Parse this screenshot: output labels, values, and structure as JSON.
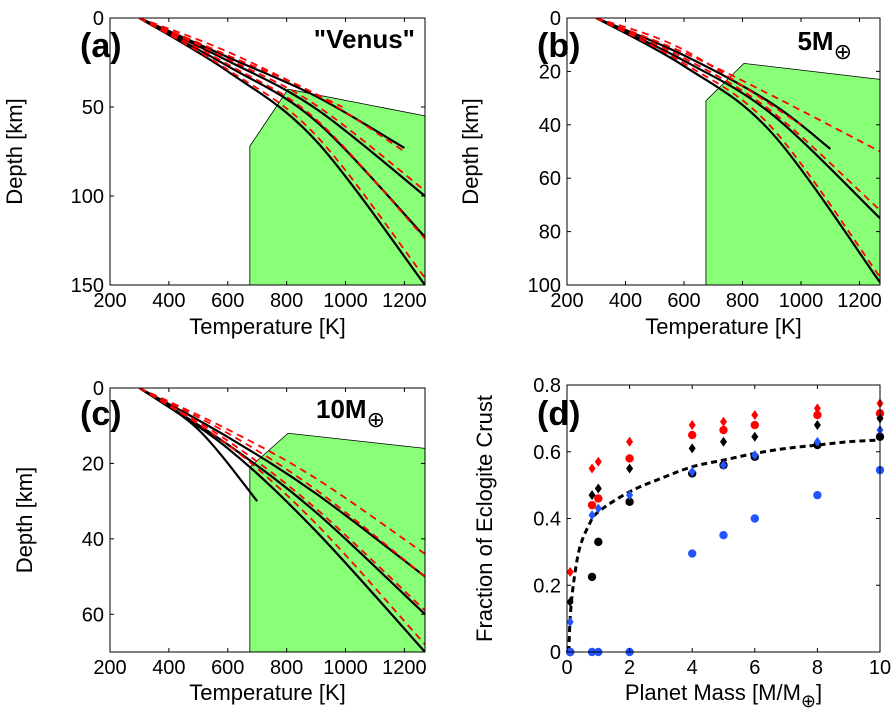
{
  "chart_data": [
    {
      "type": "line",
      "panel_label": "(a)",
      "title": "\"Venus\"",
      "xlabel": "Temperature [K]",
      "ylabel": "Depth [km]",
      "xlim": [
        200,
        1270
      ],
      "ylim": [
        0,
        150
      ],
      "y_reversed": true,
      "xticks": [
        200,
        400,
        600,
        800,
        1000,
        1200
      ],
      "yticks": [
        0,
        50,
        100,
        150
      ],
      "green_region": [
        [
          675,
          150
        ],
        [
          675,
          72
        ],
        [
          805,
          40
        ],
        [
          1270,
          55
        ],
        [
          1270,
          150
        ]
      ],
      "series": [
        {
          "name": "black solid 1",
          "color": "#000000",
          "dash": "solid",
          "points": [
            [
              300,
              0
            ],
            [
              600,
              22
            ],
            [
              900,
              44
            ],
            [
              1200,
              73
            ]
          ]
        },
        {
          "name": "black solid 2",
          "color": "#000000",
          "dash": "solid",
          "points": [
            [
              300,
              0
            ],
            [
              600,
              24
            ],
            [
              900,
              51
            ],
            [
              1270,
              100
            ]
          ]
        },
        {
          "name": "black solid 3",
          "color": "#000000",
          "dash": "solid",
          "points": [
            [
              300,
              0
            ],
            [
              600,
              27
            ],
            [
              900,
              58
            ],
            [
              1270,
              123
            ]
          ]
        },
        {
          "name": "black solid 4",
          "color": "#000000",
          "dash": "solid",
          "points": [
            [
              300,
              0
            ],
            [
              600,
              30
            ],
            [
              900,
              69
            ],
            [
              1270,
              150
            ]
          ]
        },
        {
          "name": "red dashed 1",
          "color": "#ff0000",
          "dash": "dashed",
          "points": [
            [
              300,
              0
            ],
            [
              600,
              19
            ],
            [
              990,
              50
            ]
          ]
        },
        {
          "name": "red dashed 2",
          "color": "#ff0000",
          "dash": "dashed",
          "points": [
            [
              300,
              0
            ],
            [
              600,
              21
            ],
            [
              900,
              43
            ],
            [
              1200,
              75
            ]
          ]
        },
        {
          "name": "red dashed 3",
          "color": "#ff0000",
          "dash": "dashed",
          "points": [
            [
              300,
              0
            ],
            [
              600,
              23
            ],
            [
              900,
              49
            ],
            [
              1270,
              97
            ]
          ]
        },
        {
          "name": "red dashed 4",
          "color": "#ff0000",
          "dash": "dashed",
          "points": [
            [
              300,
              0
            ],
            [
              600,
              26
            ],
            [
              900,
              57
            ],
            [
              1270,
              124
            ]
          ]
        },
        {
          "name": "red dashed 5",
          "color": "#ff0000",
          "dash": "dashed",
          "points": [
            [
              300,
              0
            ],
            [
              600,
              29
            ],
            [
              900,
              66
            ],
            [
              1270,
              146
            ]
          ]
        }
      ]
    },
    {
      "type": "line",
      "panel_label": "(b)",
      "title": "5M",
      "title_symbol": "⊕",
      "xlabel": "Temperature [K]",
      "ylabel": "Depth [km]",
      "xlim": [
        200,
        1270
      ],
      "ylim": [
        0,
        100
      ],
      "y_reversed": true,
      "xticks": [
        200,
        400,
        600,
        800,
        1000,
        1200
      ],
      "yticks": [
        0,
        20,
        40,
        60,
        80,
        100
      ],
      "green_region": [
        [
          675,
          100
        ],
        [
          675,
          31
        ],
        [
          805,
          17
        ],
        [
          1270,
          23
        ],
        [
          1270,
          100
        ]
      ],
      "series": [
        {
          "name": "black solid 1",
          "color": "#000000",
          "dash": "solid",
          "points": [
            [
              300,
              0
            ],
            [
              600,
              14
            ],
            [
              900,
              32
            ],
            [
              1100,
              49
            ]
          ]
        },
        {
          "name": "black solid 2",
          "color": "#000000",
          "dash": "solid",
          "points": [
            [
              300,
              0
            ],
            [
              600,
              16
            ],
            [
              900,
              36
            ],
            [
              1270,
              75
            ]
          ]
        },
        {
          "name": "black solid 3",
          "color": "#000000",
          "dash": "solid",
          "points": [
            [
              300,
              0
            ],
            [
              600,
              18
            ],
            [
              900,
              43
            ],
            [
              1270,
              99
            ]
          ]
        },
        {
          "name": "red dashed 1",
          "color": "#ff0000",
          "dash": "dashed",
          "points": [
            [
              300,
              0
            ],
            [
              600,
              12
            ],
            [
              1000,
              40
            ]
          ]
        },
        {
          "name": "red dashed 2",
          "color": "#ff0000",
          "dash": "dashed",
          "points": [
            [
              300,
              0
            ],
            [
              600,
              13
            ],
            [
              900,
              29
            ],
            [
              1270,
              50
            ]
          ]
        },
        {
          "name": "red dashed 3",
          "color": "#ff0000",
          "dash": "dashed",
          "points": [
            [
              300,
              0
            ],
            [
              600,
              15
            ],
            [
              900,
              35
            ],
            [
              1270,
              72
            ]
          ]
        },
        {
          "name": "red dashed 4",
          "color": "#ff0000",
          "dash": "dashed",
          "points": [
            [
              300,
              0
            ],
            [
              600,
              17
            ],
            [
              900,
              41
            ],
            [
              1270,
              97
            ]
          ]
        }
      ]
    },
    {
      "type": "line",
      "panel_label": "(c)",
      "title": "10M",
      "title_symbol": "⊕",
      "xlabel": "Temperature [K]",
      "ylabel": "Depth [km]",
      "xlim": [
        200,
        1270
      ],
      "ylim": [
        0,
        70
      ],
      "y_reversed": true,
      "xticks": [
        200,
        400,
        600,
        800,
        1000,
        1200
      ],
      "yticks": [
        0,
        20,
        40,
        60
      ],
      "green_region": [
        [
          675,
          70
        ],
        [
          675,
          21
        ],
        [
          805,
          12
        ],
        [
          1270,
          16
        ],
        [
          1270,
          70
        ]
      ],
      "series": [
        {
          "name": "black solid 1",
          "color": "#000000",
          "dash": "solid",
          "points": [
            [
              300,
              0
            ],
            [
              500,
              11
            ],
            [
              700,
              30
            ]
          ]
        },
        {
          "name": "black solid 2",
          "color": "#000000",
          "dash": "solid",
          "points": [
            [
              300,
              0
            ],
            [
              600,
              13
            ],
            [
              900,
              28
            ],
            [
              1270,
              50
            ]
          ]
        },
        {
          "name": "black solid 3",
          "color": "#000000",
          "dash": "solid",
          "points": [
            [
              300,
              0
            ],
            [
              600,
              15
            ],
            [
              900,
              33
            ],
            [
              1270,
              60
            ]
          ]
        },
        {
          "name": "black solid 4",
          "color": "#000000",
          "dash": "solid",
          "points": [
            [
              300,
              0
            ],
            [
              600,
              16
            ],
            [
              900,
              38
            ],
            [
              1270,
              70
            ]
          ]
        },
        {
          "name": "red dashed 1",
          "color": "#ff0000",
          "dash": "dashed",
          "points": [
            [
              300,
              0
            ],
            [
              600,
              11
            ],
            [
              900,
              24
            ],
            [
              1270,
              44
            ]
          ]
        },
        {
          "name": "red dashed 2",
          "color": "#ff0000",
          "dash": "dashed",
          "points": [
            [
              300,
              0
            ],
            [
              600,
              12
            ],
            [
              900,
              27
            ],
            [
              1270,
              50
            ]
          ]
        },
        {
          "name": "red dashed 3",
          "color": "#ff0000",
          "dash": "dashed",
          "points": [
            [
              300,
              0
            ],
            [
              600,
              14
            ],
            [
              900,
              32
            ],
            [
              1270,
              59
            ]
          ]
        },
        {
          "name": "red dashed 4",
          "color": "#ff0000",
          "dash": "dashed",
          "points": [
            [
              300,
              0
            ],
            [
              600,
              15
            ],
            [
              900,
              36
            ],
            [
              1270,
              68
            ]
          ]
        }
      ]
    },
    {
      "type": "scatter",
      "panel_label": "(d)",
      "xlabel": "Planet Mass [M/M",
      "xlabel_symbol": "⊕",
      "xlabel_close": "]",
      "ylabel": "Fraction of Eclogite Crust",
      "xlim": [
        0,
        10
      ],
      "ylim": [
        0,
        0.8
      ],
      "xticks": [
        0,
        2,
        4,
        6,
        8,
        10
      ],
      "yticks": [
        0,
        0.2,
        0.4,
        0.6,
        0.8
      ],
      "ytick_labels": [
        "0",
        "0.2",
        "0.4",
        "0.6",
        "0.8"
      ],
      "fit_curve": {
        "color": "#000000",
        "dash": "dashed",
        "points": [
          [
            0.06,
            0
          ],
          [
            0.1,
            0.1
          ],
          [
            0.2,
            0.2
          ],
          [
            0.4,
            0.31
          ],
          [
            0.7,
            0.38
          ],
          [
            1,
            0.42
          ],
          [
            2,
            0.48
          ],
          [
            3,
            0.52
          ],
          [
            4,
            0.555
          ],
          [
            5,
            0.575
          ],
          [
            6,
            0.595
          ],
          [
            7,
            0.61
          ],
          [
            8,
            0.62
          ],
          [
            9,
            0.63
          ],
          [
            10,
            0.635
          ]
        ]
      },
      "series": [
        {
          "name": "red diamonds",
          "color": "#ff0000",
          "marker": "diamond",
          "points": [
            [
              0.1,
              0.24
            ],
            [
              0.8,
              0.55
            ],
            [
              1,
              0.57
            ],
            [
              2,
              0.63
            ],
            [
              4,
              0.68
            ],
            [
              5,
              0.69
            ],
            [
              6,
              0.71
            ],
            [
              8,
              0.73
            ],
            [
              10,
              0.745
            ]
          ]
        },
        {
          "name": "red circles",
          "color": "#ff0000",
          "marker": "circle",
          "points": [
            [
              0.1,
              0
            ],
            [
              0.8,
              0.44
            ],
            [
              1,
              0.46
            ],
            [
              2,
              0.58
            ],
            [
              4,
              0.65
            ],
            [
              5,
              0.665
            ],
            [
              6,
              0.68
            ],
            [
              8,
              0.71
            ],
            [
              10,
              0.715
            ]
          ]
        },
        {
          "name": "black diamonds",
          "color": "#000000",
          "marker": "diamond",
          "points": [
            [
              0.1,
              0.15
            ],
            [
              0.8,
              0.47
            ],
            [
              1,
              0.49
            ],
            [
              2,
              0.55
            ],
            [
              4,
              0.61
            ],
            [
              5,
              0.63
            ],
            [
              6,
              0.645
            ],
            [
              8,
              0.68
            ],
            [
              10,
              0.7
            ]
          ]
        },
        {
          "name": "black circles",
          "color": "#000000",
          "marker": "circle",
          "points": [
            [
              0.1,
              0
            ],
            [
              0.8,
              0.225
            ],
            [
              1,
              0.33
            ],
            [
              2,
              0.45
            ],
            [
              4,
              0.535
            ],
            [
              5,
              0.56
            ],
            [
              6,
              0.585
            ],
            [
              8,
              0.62
            ],
            [
              10,
              0.645
            ]
          ]
        },
        {
          "name": "blue diamonds",
          "color": "#2255ff",
          "marker": "diamond",
          "points": [
            [
              0.1,
              0.09
            ],
            [
              0.8,
              0.41
            ],
            [
              1,
              0.43
            ],
            [
              2,
              0.47
            ],
            [
              4,
              0.54
            ],
            [
              5,
              0.56
            ],
            [
              6,
              0.59
            ],
            [
              8,
              0.63
            ],
            [
              10,
              0.665
            ]
          ]
        },
        {
          "name": "blue circles",
          "color": "#2255ff",
          "marker": "circle",
          "points": [
            [
              0.1,
              0
            ],
            [
              0.8,
              0
            ],
            [
              1,
              0
            ],
            [
              2,
              0
            ],
            [
              4,
              0.295
            ],
            [
              5,
              0.35
            ],
            [
              6,
              0.4
            ],
            [
              8,
              0.47
            ],
            [
              10,
              0.545
            ]
          ]
        }
      ]
    }
  ]
}
